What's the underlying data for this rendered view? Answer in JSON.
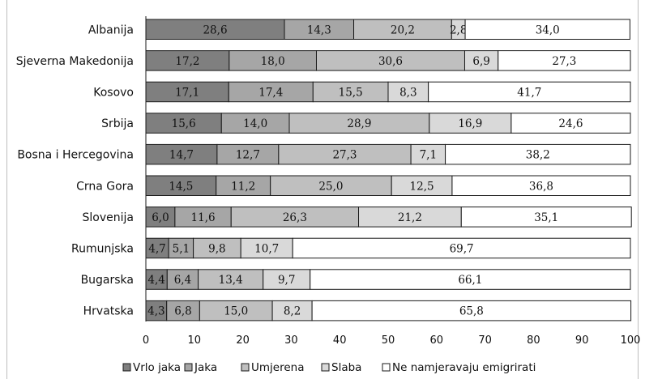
{
  "chart_data": {
    "type": "bar",
    "orientation": "horizontal",
    "stacked": true,
    "categories": [
      "Albanija",
      "Sjeverna Makedonija",
      "Kosovo",
      "Srbija",
      "Bosna i Hercegovina",
      "Crna Gora",
      "Slovenija",
      "Rumunjska",
      "Bugarska",
      "Hrvatska"
    ],
    "series": [
      {
        "name": "Vrlo jaka",
        "color": "#7f7f7f",
        "values": [
          28.6,
          17.2,
          17.1,
          15.6,
          14.7,
          14.5,
          6.0,
          4.7,
          4.4,
          4.3
        ]
      },
      {
        "name": "Jaka",
        "color": "#a6a6a6",
        "values": [
          14.3,
          18.0,
          17.4,
          14.0,
          12.7,
          11.2,
          11.6,
          5.1,
          6.4,
          6.8
        ]
      },
      {
        "name": "Umjerena",
        "color": "#bfbfbf",
        "values": [
          20.2,
          30.6,
          15.5,
          28.9,
          27.3,
          25.0,
          26.3,
          9.8,
          13.4,
          15.0
        ]
      },
      {
        "name": "Slaba",
        "color": "#d9d9d9",
        "values": [
          2.8,
          6.9,
          8.3,
          16.9,
          7.1,
          12.5,
          21.2,
          10.7,
          9.7,
          8.2
        ]
      },
      {
        "name": "Ne namjeravaju emigrirati",
        "color": "#ffffff",
        "values": [
          34.0,
          27.3,
          41.7,
          24.6,
          38.2,
          36.8,
          35.1,
          69.7,
          66.1,
          65.8
        ]
      }
    ],
    "value_labels": [
      [
        "28,6",
        "14,3",
        "20,2",
        "2,8",
        "34,0"
      ],
      [
        "17,2",
        "18,0",
        "30,6",
        "6,9",
        "27,3"
      ],
      [
        "17,1",
        "17,4",
        "15,5",
        "8,3",
        "41,7"
      ],
      [
        "15,6",
        "14,0",
        "28,9",
        "16,9",
        "24,6"
      ],
      [
        "14,7",
        "12,7",
        "27,3",
        "7,1",
        "38,2"
      ],
      [
        "14,5",
        "11,2",
        "25,0",
        "12,5",
        "36,8"
      ],
      [
        "6,0",
        "11,6",
        "26,3",
        "21,2",
        "35,1"
      ],
      [
        "4,7",
        "5,1",
        "9,8",
        "10,7",
        "69,7"
      ],
      [
        "4,4",
        "6,4",
        "13,4",
        "9,7",
        "66,1"
      ],
      [
        "4,3",
        "6,8",
        "15,0",
        "8,2",
        "65,8"
      ]
    ],
    "xlim": [
      0,
      100
    ],
    "xticks": [
      "0",
      "10",
      "20",
      "30",
      "40",
      "50",
      "60",
      "70",
      "80",
      "90",
      "100"
    ],
    "legend_position": "bottom",
    "grid": false
  }
}
